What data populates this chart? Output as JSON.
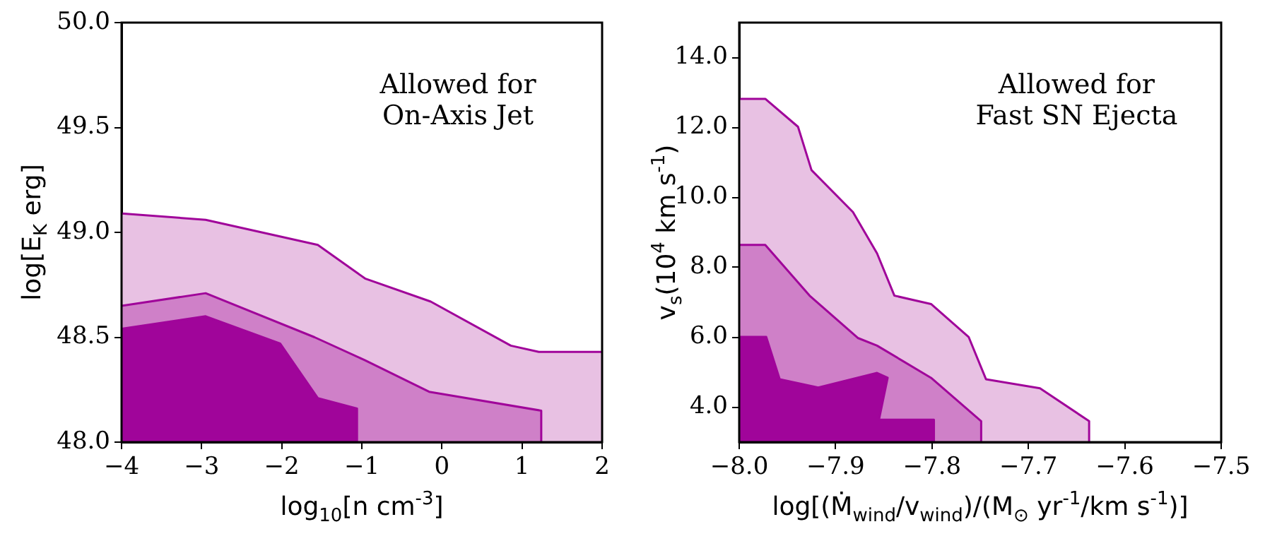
{
  "chart_data": [
    {
      "type": "area",
      "xlabel": "log$_{10}$[n cm$^{-3}$]",
      "ylabel": "log[E$_{K}$ erg]",
      "annotations": [
        "Allowed for\nOn-Axis Jet"
      ],
      "xlim": [
        -4,
        2
      ],
      "xticks": [
        {
          "value": -4,
          "label": "−4"
        },
        {
          "value": -3,
          "label": "−3"
        },
        {
          "value": -2,
          "label": "−2"
        },
        {
          "value": -1,
          "label": "−1"
        },
        0,
        1,
        2
      ],
      "ylim": [
        48,
        50
      ],
      "yticks": [
        {
          "value": 48,
          "label": "48.0"
        },
        {
          "value": 48.5,
          "label": "48.5"
        },
        {
          "value": 49,
          "label": "49.0"
        },
        {
          "value": 49.5,
          "label": "49.5"
        },
        {
          "value": 50,
          "label": "50.0"
        }
      ],
      "grid": false,
      "legend": false,
      "marker": "none",
      "series": [
        {
          "color": "#e8c1e3",
          "x": [
            -4,
            -2.95,
            -1.55,
            -0.96,
            -0.14,
            0.86,
            1.21,
            2
          ],
          "values": [
            49.09,
            49.06,
            48.94,
            48.78,
            48.67,
            48.46,
            48.43,
            48.43
          ]
        },
        {
          "color": "#cf80c8",
          "x": [
            -4,
            -2.95,
            -1.59,
            -0.96,
            -0.16,
            1.24,
            1.24
          ],
          "values": [
            48.65,
            48.71,
            48.5,
            48.39,
            48.24,
            48.15,
            48.0
          ]
        },
        {
          "color": "#a0059a",
          "x": [
            -4,
            -2.95,
            -2.02,
            -1.55,
            -1.06,
            -1.06
          ],
          "values": [
            48.54,
            48.6,
            48.47,
            48.21,
            48.16,
            48.0
          ]
        }
      ]
    },
    {
      "type": "area",
      "xlabel": "log[(Ṁ$_{wind}$/v$_{wind}$)/(M$_{⊙}$ yr$^{-1}$/km s$^{-1}$)]",
      "ylabel": "v$_{s}$(10$^{4}$ km s$^{-1}$)",
      "annotations": [
        "Allowed for\nFast SN Ejecta"
      ],
      "xlim": [
        -8.0,
        -7.5
      ],
      "xticks": [
        {
          "value": -8.0,
          "label": "−8.0"
        },
        {
          "value": -7.9,
          "label": "−7.9"
        },
        {
          "value": -7.8,
          "label": "−7.8"
        },
        {
          "value": -7.7,
          "label": "−7.7"
        },
        {
          "value": -7.6,
          "label": "−7.6"
        },
        {
          "value": -7.5,
          "label": "−7.5"
        }
      ],
      "ylim": [
        3.0,
        15.0
      ],
      "yticks": [
        {
          "value": 4,
          "label": "4.0"
        },
        {
          "value": 6,
          "label": "6.0"
        },
        {
          "value": 8,
          "label": "8.0"
        },
        {
          "value": 10,
          "label": "10.0"
        },
        {
          "value": 12,
          "label": "12.0"
        },
        {
          "value": 14,
          "label": "14.0"
        }
      ],
      "grid": false,
      "legend": false,
      "marker": "none",
      "series": [
        {
          "color": "#e8c1e3",
          "x": [
            -8.0,
            -7.973,
            -7.939,
            -7.925,
            -7.882,
            -7.857,
            -7.839,
            -7.801,
            -7.762,
            -7.744,
            -7.688,
            -7.637,
            -7.637
          ],
          "values": [
            12.82,
            12.82,
            12.02,
            10.78,
            9.58,
            8.4,
            7.19,
            6.95,
            6.01,
            4.8,
            4.54,
            3.6,
            3.0
          ]
        },
        {
          "color": "#cf80c8",
          "x": [
            -8.0,
            -7.973,
            -7.927,
            -7.877,
            -7.857,
            -7.801,
            -7.749,
            -7.749
          ],
          "values": [
            8.64,
            8.64,
            7.19,
            5.98,
            5.76,
            4.84,
            3.6,
            3.0
          ]
        },
        {
          "color": "#a0059a",
          "x": [
            -8.0,
            -7.972,
            -7.958,
            -7.918,
            -7.857,
            -7.846,
            -7.855,
            -7.798,
            -7.798
          ],
          "values": [
            6.01,
            6.01,
            4.8,
            4.56,
            4.98,
            4.84,
            3.64,
            3.64,
            3.0
          ]
        }
      ]
    }
  ]
}
